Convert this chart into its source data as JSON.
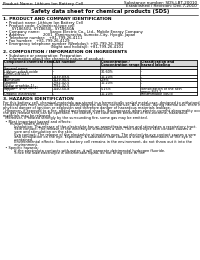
{
  "header_left": "Product Name: Lithium Ion Battery Cell",
  "header_right_line1": "Substance number: SDS-LBT-20010",
  "header_right_line2": "Established / Revision: Dec.7,2010",
  "title": "Safety data sheet for chemical products (SDS)",
  "section1_title": "1. PRODUCT AND COMPANY IDENTIFICATION",
  "section1_lines": [
    "  • Product name: Lithium Ion Battery Cell",
    "  • Product code: Cylindrical-type cell",
    "       SY18650U, SY18650L, SY18650A",
    "  • Company name:        Sanyo Electric Co., Ltd., Mobile Energy Company",
    "  • Address:              2001  Kamimuracho, Sumoto-City, Hyogo, Japan",
    "  • Telephone number:   +81-799-26-4111",
    "  • Fax number:   +81-799-26-4129",
    "  • Emergency telephone number (Weekday): +81-799-26-3962",
    "                                      (Night and holiday): +81-799-26-4101"
  ],
  "section2_title": "2. COMPOSITION / INFORMATION ON INGREDIENTS",
  "section2_sub1": "  • Substance or preparation: Preparation",
  "section2_sub2": "  • Information about the chemical nature of product:",
  "table_header": [
    "Component/chemical name",
    "CAS number",
    "Concentration /\nConcentration range",
    "Classification and\nhazard labeling"
  ],
  "table_subheader": "Several name",
  "table_rows": [
    [
      "Lithium cobalt oxide",
      "-",
      "30-60%",
      "-"
    ],
    [
      "(LiMnCo(NiO2))",
      "",
      "",
      ""
    ],
    [
      "Iron",
      "7439-89-6",
      "10-20%",
      "-"
    ],
    [
      "Aluminum",
      "7429-90-5",
      "2-8%",
      "-"
    ],
    [
      "Graphite",
      "7782-42-5",
      "10-20%",
      "-"
    ],
    [
      "(Flake graphite-1)",
      "7782-42-5",
      "",
      ""
    ],
    [
      "(Air-flow graphite-1)",
      "",
      "",
      ""
    ],
    [
      "Copper",
      "7440-50-8",
      "5-15%",
      "Sensitization of the skin\ngroup R43.2"
    ],
    [
      "Organic electrolyte",
      "-",
      "10-20%",
      "Inflammable liquid"
    ]
  ],
  "section3_title": "3. HAZARDS IDENTIFICATION",
  "section3_lines": [
    "For this battery cell, chemical materials are stored in a hermetically sealed metal case, designed to withstand",
    "temperatures from minus30 degrees-plus60degrees during normal use. As a result, during normal use, there is no",
    "physical danger of ignition or explosion and therefore danger of hazardous materials leakage.",
    "  However, if exposed to a fire, added mechanical shocks, decomposed, when electric current abnormality occurs,",
    "the gas release vent can be operated. The battery cell case will be breached of fire-extreme, hazardous",
    "materials may be released.",
    "  Moreover, if heated strongly by the surrounding fire, some gas may be emitted.",
    "",
    "  • Most important hazard and effects:",
    "      Human health effects:",
    "          Inhalation: The release of the electrolyte has an anaesthesia action and stimulates a respiratory tract.",
    "          Skin contact: The release of the electrolyte stimulates a skin. The electrolyte skin contact causes a",
    "          sore and stimulation on the skin.",
    "          Eye contact: The release of the electrolyte stimulates eyes. The electrolyte eye contact causes a sore",
    "          and stimulation on the eye. Especially, a substance that causes a strong inflammation of the eye is",
    "          contained.",
    "          Environmental effects: Since a battery cell remains in the environment, do not throw out it into the",
    "          environment.",
    "",
    "  • Specific hazards:",
    "          If the electrolyte contacts with water, it will generate detrimental hydrogen fluoride.",
    "          Since the lead electrolyte is inflammable liquid, do not bring close to fire."
  ],
  "bg_color": "#ffffff",
  "text_color": "#000000",
  "line_color": "#000000",
  "gray_color": "#cccccc"
}
